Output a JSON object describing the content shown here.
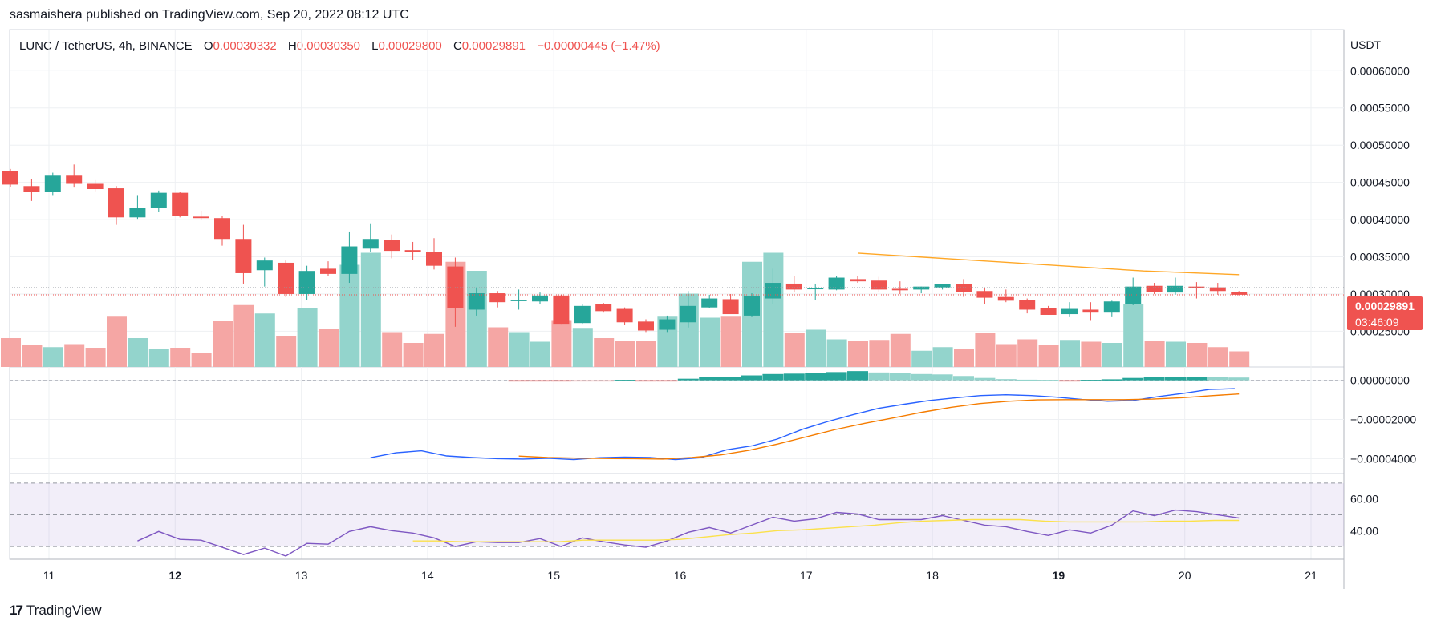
{
  "header": {
    "published": "sasmaishera published on TradingView.com, Sep 20, 2022 08:12 UTC"
  },
  "symbol": {
    "name": "LUNC / TetherUS, 4h, BINANCE",
    "o_label": "O",
    "o_value": "0.00030332",
    "h_label": "H",
    "h_value": "0.00030350",
    "l_label": "L",
    "l_value": "0.00029800",
    "c_label": "C",
    "c_value": "0.00029891",
    "change": "−0.00000445 (−1.47%)"
  },
  "price_tag": {
    "price": "0.00029891",
    "countdown": "03:46:09"
  },
  "footer": {
    "brand": "TradingView",
    "logo": "17"
  },
  "colors": {
    "up": "#26a69a",
    "down": "#ef5350",
    "up_vol": "#93d4cc",
    "down_vol": "#f5a6a4",
    "macd": "#2962ff",
    "signal": "#f57c00",
    "ma": "#ffa726",
    "rsi": "#7e57c2",
    "rsi_ma": "#fbe14b"
  },
  "chart_data": [
    {
      "type": "candlestick",
      "currency_label": "USDT",
      "x_ticks": [
        "11",
        "12",
        "13",
        "14",
        "15",
        "16",
        "17",
        "18",
        "19",
        "20",
        "21"
      ],
      "y_ticks": [
        "0.00025000",
        "0.00030000",
        "0.00035000",
        "0.00040000",
        "0.00045000",
        "0.00050000",
        "0.00055000",
        "0.00060000"
      ],
      "ylim": [
        0.000202,
        0.000652
      ],
      "candles": [
        {
          "o": 0.000465,
          "h": 0.000468,
          "l": 0.000444,
          "c": 0.000447
        },
        {
          "o": 0.000445,
          "h": 0.000455,
          "l": 0.000425,
          "c": 0.000437
        },
        {
          "o": 0.000437,
          "h": 0.000463,
          "l": 0.000433,
          "c": 0.000459
        },
        {
          "o": 0.000459,
          "h": 0.000474,
          "l": 0.000443,
          "c": 0.000448
        },
        {
          "o": 0.000448,
          "h": 0.000453,
          "l": 0.000438,
          "c": 0.000441
        },
        {
          "o": 0.000442,
          "h": 0.000445,
          "l": 0.000393,
          "c": 0.000403
        },
        {
          "o": 0.000403,
          "h": 0.000433,
          "l": 0.000401,
          "c": 0.000416
        },
        {
          "o": 0.000416,
          "h": 0.000439,
          "l": 0.00041,
          "c": 0.000436
        },
        {
          "o": 0.000436,
          "h": 0.000437,
          "l": 0.000403,
          "c": 0.000405
        },
        {
          "o": 0.000404,
          "h": 0.000412,
          "l": 0.0004,
          "c": 0.000402
        },
        {
          "o": 0.000402,
          "h": 0.000405,
          "l": 0.000365,
          "c": 0.000374
        },
        {
          "o": 0.000374,
          "h": 0.000393,
          "l": 0.000314,
          "c": 0.000328
        },
        {
          "o": 0.000332,
          "h": 0.000349,
          "l": 0.00031,
          "c": 0.000345
        },
        {
          "o": 0.000342,
          "h": 0.000345,
          "l": 0.000296,
          "c": 0.0003
        },
        {
          "o": 0.0003,
          "h": 0.000338,
          "l": 0.000292,
          "c": 0.000331
        },
        {
          "o": 0.000334,
          "h": 0.000344,
          "l": 0.000324,
          "c": 0.000327
        },
        {
          "o": 0.000327,
          "h": 0.000384,
          "l": 0.000315,
          "c": 0.000364
        },
        {
          "o": 0.000361,
          "h": 0.000395,
          "l": 0.000357,
          "c": 0.000374
        },
        {
          "o": 0.000373,
          "h": 0.00038,
          "l": 0.000348,
          "c": 0.000358
        },
        {
          "o": 0.000359,
          "h": 0.00037,
          "l": 0.000346,
          "c": 0.000356
        },
        {
          "o": 0.000357,
          "h": 0.000375,
          "l": 0.000333,
          "c": 0.000338
        },
        {
          "o": 0.000337,
          "h": 0.000349,
          "l": 0.000256,
          "c": 0.000281
        },
        {
          "o": 0.000279,
          "h": 0.000309,
          "l": 0.000271,
          "c": 0.000301
        },
        {
          "o": 0.000301,
          "h": 0.000304,
          "l": 0.000282,
          "c": 0.000289
        },
        {
          "o": 0.000292,
          "h": 0.000306,
          "l": 0.000279,
          "c": 0.000292
        },
        {
          "o": 0.00029,
          "h": 0.000302,
          "l": 0.000287,
          "c": 0.000298
        },
        {
          "o": 0.000298,
          "h": 0.000299,
          "l": 0.00026,
          "c": 0.00026
        },
        {
          "o": 0.000261,
          "h": 0.000286,
          "l": 0.00026,
          "c": 0.000284
        },
        {
          "o": 0.000286,
          "h": 0.000288,
          "l": 0.000275,
          "c": 0.000277
        },
        {
          "o": 0.00028,
          "h": 0.000282,
          "l": 0.000258,
          "c": 0.000262
        },
        {
          "o": 0.000263,
          "h": 0.000266,
          "l": 0.000249,
          "c": 0.000251
        },
        {
          "o": 0.000252,
          "h": 0.000271,
          "l": 0.000249,
          "c": 0.000266
        },
        {
          "o": 0.000262,
          "h": 0.000304,
          "l": 0.000255,
          "c": 0.000284
        },
        {
          "o": 0.000282,
          "h": 0.000299,
          "l": 0.000281,
          "c": 0.000294
        },
        {
          "o": 0.000293,
          "h": 0.0003,
          "l": 0.000277,
          "c": 0.000273
        },
        {
          "o": 0.000271,
          "h": 0.000301,
          "l": 0.00027,
          "c": 0.000297
        },
        {
          "o": 0.000294,
          "h": 0.000334,
          "l": 0.000286,
          "c": 0.000315
        },
        {
          "o": 0.000314,
          "h": 0.000324,
          "l": 0.000302,
          "c": 0.000306
        },
        {
          "o": 0.000307,
          "h": 0.000314,
          "l": 0.000292,
          "c": 0.000308
        },
        {
          "o": 0.000306,
          "h": 0.000324,
          "l": 0.000305,
          "c": 0.000322
        },
        {
          "o": 0.00032,
          "h": 0.000324,
          "l": 0.000315,
          "c": 0.000317
        },
        {
          "o": 0.000318,
          "h": 0.000323,
          "l": 0.000303,
          "c": 0.000306
        },
        {
          "o": 0.000307,
          "h": 0.000317,
          "l": 0.0003,
          "c": 0.000305
        },
        {
          "o": 0.000306,
          "h": 0.00031,
          "l": 0.000301,
          "c": 0.00031
        },
        {
          "o": 0.000309,
          "h": 0.000313,
          "l": 0.000306,
          "c": 0.000313
        },
        {
          "o": 0.000313,
          "h": 0.00032,
          "l": 0.000296,
          "c": 0.000303
        },
        {
          "o": 0.000304,
          "h": 0.000309,
          "l": 0.000287,
          "c": 0.000295
        },
        {
          "o": 0.000296,
          "h": 0.000306,
          "l": 0.000289,
          "c": 0.000291
        },
        {
          "o": 0.000292,
          "h": 0.000294,
          "l": 0.000274,
          "c": 0.000279
        },
        {
          "o": 0.000281,
          "h": 0.000284,
          "l": 0.000272,
          "c": 0.000272
        },
        {
          "o": 0.000273,
          "h": 0.000289,
          "l": 0.00027,
          "c": 0.00028
        },
        {
          "o": 0.000279,
          "h": 0.000289,
          "l": 0.000265,
          "c": 0.000275
        },
        {
          "o": 0.000275,
          "h": 0.000291,
          "l": 0.00027,
          "c": 0.00029
        },
        {
          "o": 0.000286,
          "h": 0.000322,
          "l": 0.000285,
          "c": 0.00031
        },
        {
          "o": 0.000311,
          "h": 0.000315,
          "l": 0.0003,
          "c": 0.000303
        },
        {
          "o": 0.000302,
          "h": 0.000322,
          "l": 0.000299,
          "c": 0.000311
        },
        {
          "o": 0.00031,
          "h": 0.000316,
          "l": 0.000294,
          "c": 0.000308
        },
        {
          "o": 0.000309,
          "h": 0.000315,
          "l": 0.000299,
          "c": 0.000304
        },
        {
          "o": 0.000303,
          "h": 0.000304,
          "l": 0.000298,
          "c": 0.000299
        }
      ],
      "volume": [
        48,
        36,
        33,
        38,
        32,
        85,
        48,
        30,
        32,
        23,
        76,
        103,
        89,
        52,
        98,
        64,
        170,
        190,
        58,
        40,
        55,
        175,
        160,
        66,
        58,
        42,
        78,
        65,
        48,
        43,
        43,
        85,
        122,
        82,
        85,
        175,
        190,
        57,
        62,
        46,
        44,
        45,
        55,
        27,
        33,
        30,
        57,
        38,
        46,
        36,
        45,
        42,
        40,
        105,
        44,
        42,
        40,
        33,
        26
      ],
      "volume_ma": [
        0.000355,
        0.000347,
        0.000339,
        0.000331,
        0.000326
      ],
      "volume_ma_start_index": 40,
      "last_price": 0.00029891
    },
    {
      "type": "macd",
      "y_ticks": [
        "−0.00004000",
        "−0.00002000",
        "0.00000000"
      ],
      "ylim": [
        -4.76e-05,
        6.8e-06
      ],
      "histogram": [
        0,
        0,
        0,
        0,
        0,
        0,
        0,
        0,
        0,
        0,
        0,
        0,
        0,
        0,
        0,
        0,
        0,
        0,
        0,
        0,
        0,
        0,
        0,
        0,
        -2e-07,
        -4e-07,
        -4e-07,
        -2e-07,
        -1e-07,
        2e-07,
        -3e-07,
        -3e-07,
        8e-07,
        1.6e-06,
        1.8e-06,
        2.5e-06,
        3.2e-06,
        3.4e-06,
        3.8e-06,
        4.2e-06,
        4.7e-06,
        4e-06,
        3.6e-06,
        3.2e-06,
        3e-06,
        2.2e-06,
        1.2e-06,
        6e-07,
        3e-07,
        2e-07,
        -3e-07,
        2e-07,
        5e-07,
        1.2e-06,
        1.5e-06,
        1.8e-06,
        1.8e-06,
        1.5e-06,
        1.4e-06
      ],
      "macd": [
        -3.95e-05,
        -3.7e-05,
        -3.6e-05,
        -3.86e-05,
        -3.94e-05,
        -4e-05,
        -4.02e-05,
        -3.98e-05,
        -4.05e-05,
        -3.95e-05,
        -3.92e-05,
        -3.94e-05,
        -4.05e-05,
        -3.95e-05,
        -3.55e-05,
        -3.35e-05,
        -3e-05,
        -2.5e-05,
        -2.1e-05,
        -1.75e-05,
        -1.43e-05,
        -1.22e-05,
        -1.03e-05,
        -9e-06,
        -7.8e-06,
        -7.4e-06,
        -7.8e-06,
        -8.6e-06,
        -9.8e-06,
        -1.07e-05,
        -1.03e-05,
        -8.3e-06,
        -6.6e-06,
        -4.7e-06,
        -4.3e-06
      ],
      "macd_start_index": 17,
      "signal": [
        -3.87e-05,
        -3.94e-05,
        -3.97e-05,
        -3.99e-05,
        -4e-05,
        -4.02e-05,
        -3.94e-05,
        -3.81e-05,
        -3.57e-05,
        -3.25e-05,
        -2.88e-05,
        -2.51e-05,
        -2.2e-05,
        -1.92e-05,
        -1.63e-05,
        -1.38e-05,
        -1.19e-05,
        -1.07e-05,
        -1e-05,
        -9.9e-06,
        -9.9e-06,
        -9.9e-06,
        -9.6e-06,
        -8.9e-06,
        -7.9e-06,
        -7e-06
      ],
      "signal_start_index": 24
    },
    {
      "type": "rsi",
      "y_ticks": [
        "40.00",
        "60.00"
      ],
      "ylim": [
        22,
        76
      ],
      "band": [
        30,
        70
      ],
      "rsi": [
        33.5,
        39.5,
        34.5,
        34,
        29.5,
        25,
        29,
        24,
        32,
        31.5,
        39.5,
        42.5,
        40,
        38.5,
        35.5,
        30,
        33,
        32.5,
        32.5,
        35,
        30,
        35.5,
        33,
        31,
        29.5,
        33.5,
        39,
        42,
        38.5,
        43.5,
        48.5,
        46,
        47.5,
        51.5,
        50.5,
        47,
        47,
        47,
        49.5,
        46.5,
        43.5,
        42.5,
        39.5,
        37,
        40.5,
        38.5,
        43.5,
        52.5,
        49.5,
        53,
        52,
        50,
        48
      ],
      "rsi_start_index": 6,
      "rsi_ma": [
        33.5,
        33.5,
        33,
        33,
        33,
        33,
        33,
        34,
        34,
        34,
        34,
        34.5,
        36,
        37.5,
        38.5,
        40,
        40.5,
        41.5,
        42.5,
        43.5,
        45,
        46,
        46.5,
        47,
        47,
        47,
        46,
        45.5,
        45.5,
        45.5,
        45.5,
        46,
        46,
        46.5,
        46.5
      ],
      "rsi_ma_start_index": 19
    }
  ]
}
